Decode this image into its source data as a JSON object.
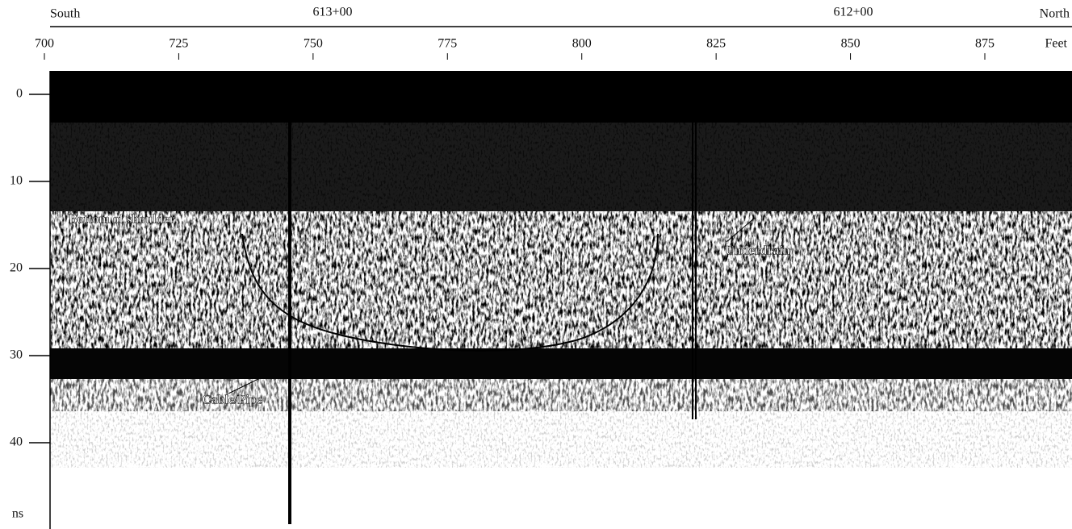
{
  "chart_data": {
    "type": "radargram",
    "header_left": "South",
    "header_right": "North",
    "stations": [
      "613+00",
      "612+00"
    ],
    "xlabel": "Feet",
    "ylabel": "ns",
    "xlim": [
      700,
      875
    ],
    "xticks": [
      700,
      725,
      750,
      775,
      800,
      825,
      850,
      875
    ],
    "ylim": [
      0,
      40
    ],
    "yticks": [
      0,
      10,
      20,
      30,
      40
    ],
    "annotations": [
      "Bottom of shoulder",
      "Underdrain",
      "Cable/Pipe"
    ]
  }
}
